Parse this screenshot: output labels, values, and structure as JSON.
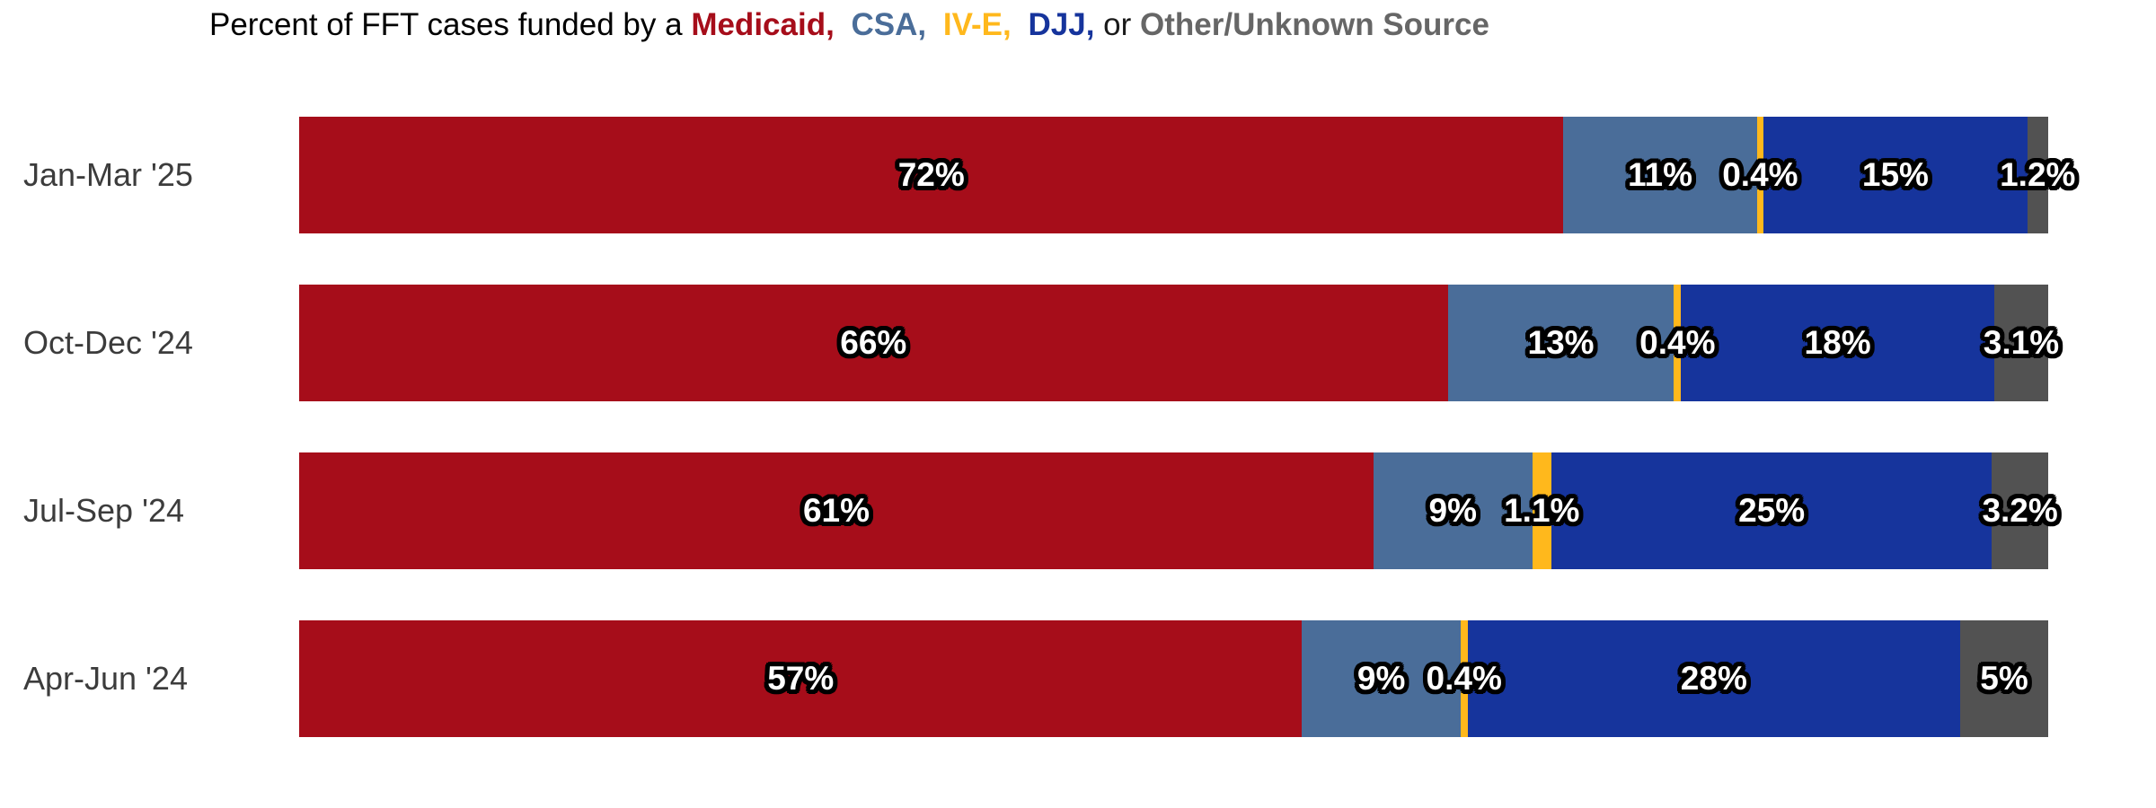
{
  "chart_data": {
    "type": "bar",
    "variant": "horizontal_stacked_100pct",
    "title_parts": [
      {
        "text": "Percent of FFT cases funded by a",
        "color": "#000000",
        "bold": false,
        "gap_after": false
      },
      {
        "text": "Medicaid,",
        "color": "#A60D1A",
        "bold": true,
        "gap_after": true
      },
      {
        "text": "CSA,",
        "color": "#4A6D99",
        "bold": true,
        "gap_after": true
      },
      {
        "text": "IV-E,",
        "color": "#FFB81C",
        "bold": true,
        "gap_after": true
      },
      {
        "text": "DJJ,",
        "color": "#16349C",
        "bold": true,
        "gap_after": false
      },
      {
        "text": "or",
        "color": "#1a1a1a",
        "bold": false,
        "gap_after": false
      },
      {
        "text": "Other/Unknown Source",
        "color": "#666666",
        "bold": true,
        "gap_after": false
      }
    ],
    "categories": [
      "Jan-Mar '25",
      "Oct-Dec '24",
      "Jul-Sep '24",
      "Apr-Jun '24"
    ],
    "series": [
      {
        "name": "Medicaid",
        "key": "medicaid",
        "color": "#A60D1A",
        "values": [
          72,
          66,
          61,
          57
        ],
        "labels": [
          "72%",
          "66%",
          "61%",
          "57%"
        ]
      },
      {
        "name": "CSA",
        "key": "csa",
        "color": "#4A6D99",
        "values": [
          11,
          13,
          9,
          9
        ],
        "labels": [
          "11%",
          "13%",
          "9%",
          "9%"
        ]
      },
      {
        "name": "IV-E",
        "key": "iv-e",
        "color": "#FFB81C",
        "values": [
          0.4,
          0.4,
          1.1,
          0.4
        ],
        "labels": [
          "0.4%",
          "0.4%",
          "1.1%",
          "0.4%"
        ]
      },
      {
        "name": "DJJ",
        "key": "djj",
        "color": "#16349C",
        "values": [
          15,
          18,
          25,
          28
        ],
        "labels": [
          "15%",
          "18%",
          "25%",
          "28%"
        ]
      },
      {
        "name": "Other/Unknown",
        "key": "other-unknown",
        "color": "#525252",
        "values": [
          1.2,
          3.1,
          3.2,
          5
        ],
        "labels": [
          "1.2%",
          "3.1%",
          "3.2%",
          "5%"
        ]
      }
    ],
    "xlim": [
      0,
      100
    ],
    "grid": false,
    "legend_position": "in-title",
    "value_label_style": "white-with-black-outline"
  }
}
